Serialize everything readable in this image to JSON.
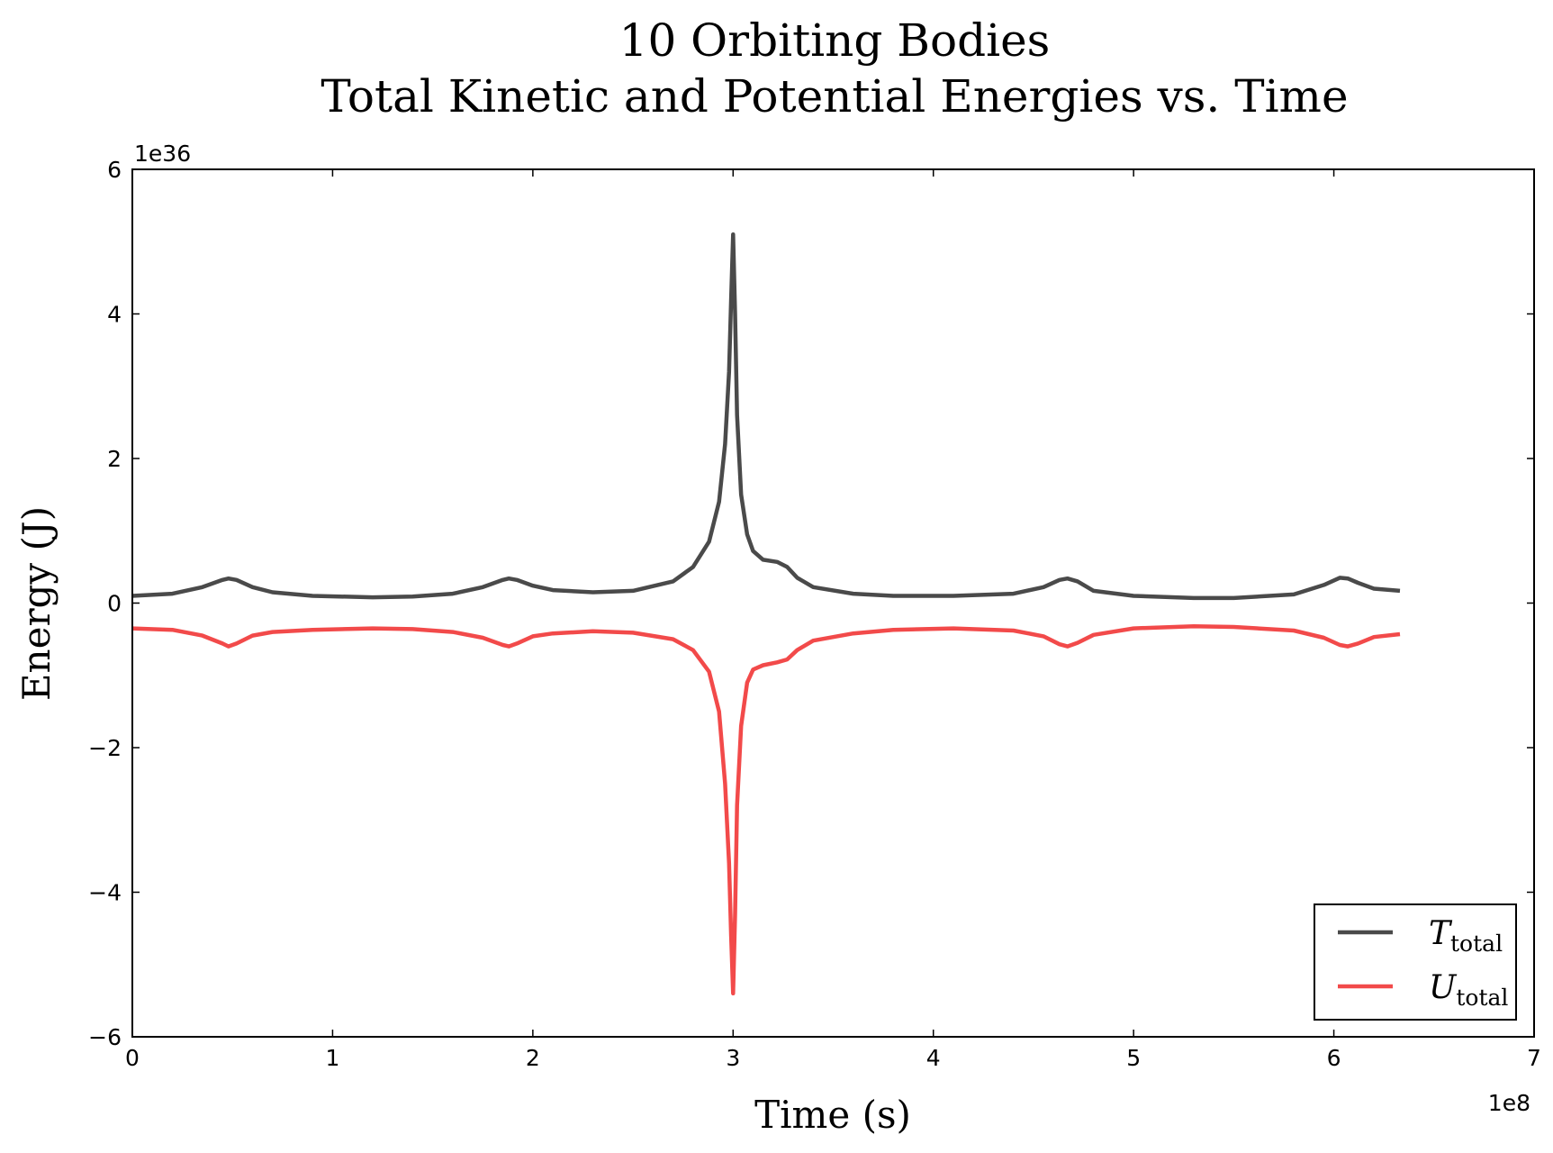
{
  "chart_data": {
    "type": "line",
    "title_lines": [
      "10 Orbiting Bodies",
      "Total Kinetic and Potential Energies vs. Time"
    ],
    "xlabel": "Time (s)",
    "ylabel": "Energy (J)",
    "x_multiplier_label": "1e8",
    "y_multiplier_label": "1e36",
    "xlim": [
      0,
      7
    ],
    "ylim": [
      -6,
      6
    ],
    "x_ticks": [
      0,
      1,
      2,
      3,
      4,
      5,
      6,
      7
    ],
    "x_tick_labels": [
      "0",
      "1",
      "2",
      "3",
      "4",
      "5",
      "6",
      "7"
    ],
    "y_ticks": [
      6,
      4,
      2,
      0,
      -2,
      -4,
      -6
    ],
    "y_tick_labels": [
      "6",
      "4",
      "2",
      "0",
      "−2",
      "−4",
      "−6"
    ],
    "grid": false,
    "legend_position": "bottom-right",
    "x_scale": "1e8 s",
    "y_scale": "1e36 J",
    "series": [
      {
        "name": "T",
        "name_subscript": "total",
        "color": "#4a4a4a",
        "x": [
          0,
          0.2,
          0.35,
          0.45,
          0.48,
          0.52,
          0.6,
          0.7,
          0.9,
          1.2,
          1.4,
          1.6,
          1.75,
          1.85,
          1.88,
          1.92,
          2.0,
          2.1,
          2.3,
          2.5,
          2.7,
          2.8,
          2.88,
          2.93,
          2.96,
          2.98,
          2.99,
          3.0,
          3.01,
          3.02,
          3.04,
          3.07,
          3.1,
          3.15,
          3.22,
          3.27,
          3.32,
          3.4,
          3.6,
          3.8,
          4.1,
          4.4,
          4.55,
          4.63,
          4.67,
          4.72,
          4.8,
          5.0,
          5.3,
          5.5,
          5.8,
          5.95,
          6.03,
          6.07,
          6.12,
          6.2,
          6.33
        ],
        "y": [
          0.1,
          0.13,
          0.22,
          0.32,
          0.34,
          0.32,
          0.22,
          0.15,
          0.1,
          0.08,
          0.09,
          0.13,
          0.22,
          0.32,
          0.34,
          0.32,
          0.24,
          0.18,
          0.15,
          0.17,
          0.3,
          0.5,
          0.85,
          1.4,
          2.2,
          3.2,
          4.2,
          5.1,
          4.0,
          2.6,
          1.5,
          0.95,
          0.72,
          0.6,
          0.57,
          0.5,
          0.35,
          0.22,
          0.13,
          0.1,
          0.1,
          0.13,
          0.22,
          0.32,
          0.34,
          0.3,
          0.17,
          0.1,
          0.07,
          0.07,
          0.12,
          0.25,
          0.35,
          0.34,
          0.28,
          0.2,
          0.17
        ]
      },
      {
        "name": "U",
        "name_subscript": "total",
        "color": "#f24a4a",
        "x": [
          0,
          0.2,
          0.35,
          0.45,
          0.48,
          0.52,
          0.6,
          0.7,
          0.9,
          1.2,
          1.4,
          1.6,
          1.75,
          1.85,
          1.88,
          1.92,
          2.0,
          2.1,
          2.3,
          2.5,
          2.7,
          2.8,
          2.88,
          2.93,
          2.96,
          2.98,
          2.99,
          3.0,
          3.01,
          3.02,
          3.04,
          3.07,
          3.1,
          3.15,
          3.22,
          3.27,
          3.32,
          3.4,
          3.6,
          3.8,
          4.1,
          4.4,
          4.55,
          4.63,
          4.67,
          4.72,
          4.8,
          5.0,
          5.3,
          5.5,
          5.8,
          5.95,
          6.03,
          6.07,
          6.12,
          6.2,
          6.33
        ],
        "y": [
          -0.35,
          -0.37,
          -0.45,
          -0.56,
          -0.6,
          -0.56,
          -0.45,
          -0.4,
          -0.37,
          -0.35,
          -0.36,
          -0.4,
          -0.48,
          -0.58,
          -0.6,
          -0.56,
          -0.46,
          -0.42,
          -0.39,
          -0.41,
          -0.5,
          -0.65,
          -0.95,
          -1.5,
          -2.5,
          -3.6,
          -4.6,
          -5.4,
          -4.3,
          -2.8,
          -1.7,
          -1.1,
          -0.92,
          -0.86,
          -0.82,
          -0.78,
          -0.65,
          -0.52,
          -0.42,
          -0.37,
          -0.35,
          -0.38,
          -0.46,
          -0.57,
          -0.6,
          -0.55,
          -0.44,
          -0.35,
          -0.32,
          -0.33,
          -0.38,
          -0.48,
          -0.58,
          -0.6,
          -0.56,
          -0.47,
          -0.43
        ]
      }
    ]
  }
}
